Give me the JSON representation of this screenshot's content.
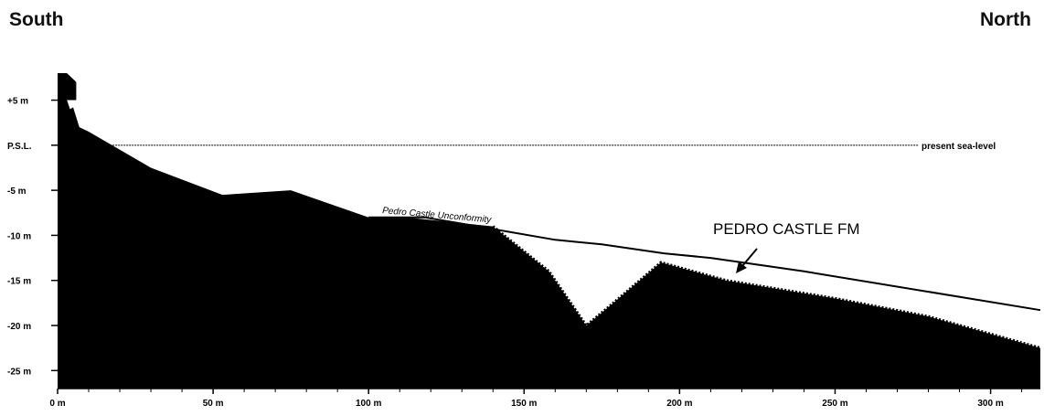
{
  "labels": {
    "left": "South",
    "right": "North",
    "sea_level": "present sea-level",
    "unconformity": "Pedro Castle Unconformity",
    "formation": "PEDRO CASTLE FM"
  },
  "y_axis": {
    "ticks": [
      {
        "value": 5,
        "label": "+5 m"
      },
      {
        "value": 0,
        "label": "P.S.L."
      },
      {
        "value": -5,
        "label": "-5 m"
      },
      {
        "value": -10,
        "label": "-10 m"
      },
      {
        "value": -15,
        "label": "-15 m"
      },
      {
        "value": -20,
        "label": "-20 m"
      },
      {
        "value": -25,
        "label": "-25 m"
      }
    ],
    "range": [
      -27,
      8.2
    ]
  },
  "x_axis": {
    "ticks": [
      {
        "value": 0,
        "label": "0 m"
      },
      {
        "value": 50,
        "label": "50 m"
      },
      {
        "value": 100,
        "label": "100 m"
      },
      {
        "value": 150,
        "label": "150 m"
      },
      {
        "value": 200,
        "label": "200 m"
      },
      {
        "value": 250,
        "label": "250 m"
      },
      {
        "value": 300,
        "label": "300 m"
      }
    ],
    "range": [
      0,
      316
    ]
  },
  "colors": {
    "rock": "#000000",
    "line": "#000000",
    "background": "#ffffff"
  },
  "profile": {
    "base_rock": [
      [
        0,
        8
      ],
      [
        3,
        8
      ],
      [
        6,
        7
      ],
      [
        6,
        5
      ],
      [
        3,
        5
      ],
      [
        4,
        4
      ],
      [
        5,
        4.2
      ],
      [
        7,
        2
      ],
      [
        10,
        1.5
      ],
      [
        30,
        -2.5
      ],
      [
        53,
        -5.5
      ],
      [
        75,
        -5
      ],
      [
        100,
        -8
      ],
      [
        112,
        -8
      ],
      [
        140,
        -9
      ],
      [
        158,
        -14
      ],
      [
        170,
        -20
      ],
      [
        177,
        -18
      ],
      [
        194,
        -13
      ],
      [
        215,
        -15
      ],
      [
        250,
        -17
      ],
      [
        280,
        -19
      ],
      [
        316,
        -22.5
      ]
    ],
    "unconformity_line": [
      [
        100,
        -8
      ],
      [
        118,
        -8
      ],
      [
        135,
        -9
      ],
      [
        160,
        -10.5
      ],
      [
        175,
        -11
      ],
      [
        195,
        -12
      ],
      [
        210,
        -12.5
      ],
      [
        240,
        -14
      ],
      [
        316,
        -18.3
      ]
    ],
    "formation_fill": [
      [
        140,
        -9
      ],
      [
        158,
        -14
      ],
      [
        170,
        -20
      ],
      [
        177,
        -18
      ],
      [
        194,
        -13
      ],
      [
        215,
        -15
      ],
      [
        250,
        -17
      ],
      [
        280,
        -19
      ],
      [
        316,
        -22.5
      ],
      [
        316,
        -18.3
      ],
      [
        240,
        -14
      ],
      [
        210,
        -12.5
      ],
      [
        195,
        -12
      ],
      [
        175,
        -11
      ],
      [
        160,
        -10.5
      ]
    ]
  }
}
